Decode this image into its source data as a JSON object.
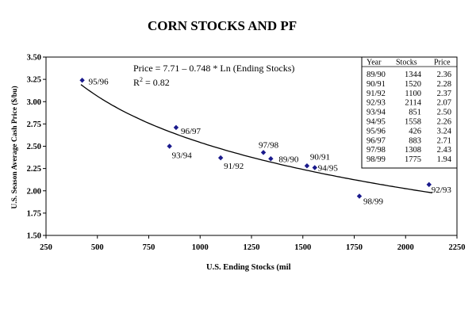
{
  "chart_data": {
    "type": "scatter",
    "title": "CORN STOCKS AND PF",
    "xlabel": "U.S. Ending Stocks (mil",
    "ylabel": "U.S. Season Average Cash Price ($/bu)",
    "xlim": [
      250,
      2250
    ],
    "ylim": [
      1.5,
      3.5
    ],
    "xticks": [
      "250",
      "500",
      "750",
      "1000",
      "1250",
      "1500",
      "1750",
      "2000",
      "2250"
    ],
    "yticks": [
      "1.50",
      "1.75",
      "2.00",
      "2.25",
      "2.50",
      "2.75",
      "3.00",
      "3.25",
      "3.50"
    ],
    "grid": false,
    "marker_color": "#1a1a8c",
    "annotation_equation": "Price = 7.71 – 0.748 * Ln (Ending Stocks)",
    "annotation_r2_label": "R",
    "annotation_r2_exp": "2",
    "annotation_r2_value": " = 0.82",
    "trendline": {
      "intercept": 7.71,
      "slope": -0.748,
      "function": "ln"
    },
    "points": [
      {
        "year": "89/90",
        "stocks": 1344,
        "price": 2.36
      },
      {
        "year": "90/91",
        "stocks": 1520,
        "price": 2.28
      },
      {
        "year": "91/92",
        "stocks": 1100,
        "price": 2.37
      },
      {
        "year": "92/93",
        "stocks": 2114,
        "price": 2.07
      },
      {
        "year": "93/94",
        "stocks": 851,
        "price": 2.5
      },
      {
        "year": "94/95",
        "stocks": 1558,
        "price": 2.26
      },
      {
        "year": "95/96",
        "stocks": 426,
        "price": 3.24
      },
      {
        "year": "96/97",
        "stocks": 883,
        "price": 2.71
      },
      {
        "year": "97/98",
        "stocks": 1308,
        "price": 2.43
      },
      {
        "year": "98/99",
        "stocks": 1775,
        "price": 1.94
      }
    ],
    "table": {
      "headers": [
        "Year",
        "Stocks",
        "Price"
      ],
      "rows": [
        [
          "89/90",
          "1344",
          "2.36"
        ],
        [
          "90/91",
          "1520",
          "2.28"
        ],
        [
          "91/92",
          "1100",
          "2.37"
        ],
        [
          "92/93",
          "2114",
          "2.07"
        ],
        [
          "93/94",
          "851",
          "2.50"
        ],
        [
          "94/95",
          "1558",
          "2.26"
        ],
        [
          "95/96",
          "426",
          "3.24"
        ],
        [
          "96/97",
          "883",
          "2.71"
        ],
        [
          "97/98",
          "1308",
          "2.43"
        ],
        [
          "98/99",
          "1775",
          "1.94"
        ]
      ]
    }
  }
}
